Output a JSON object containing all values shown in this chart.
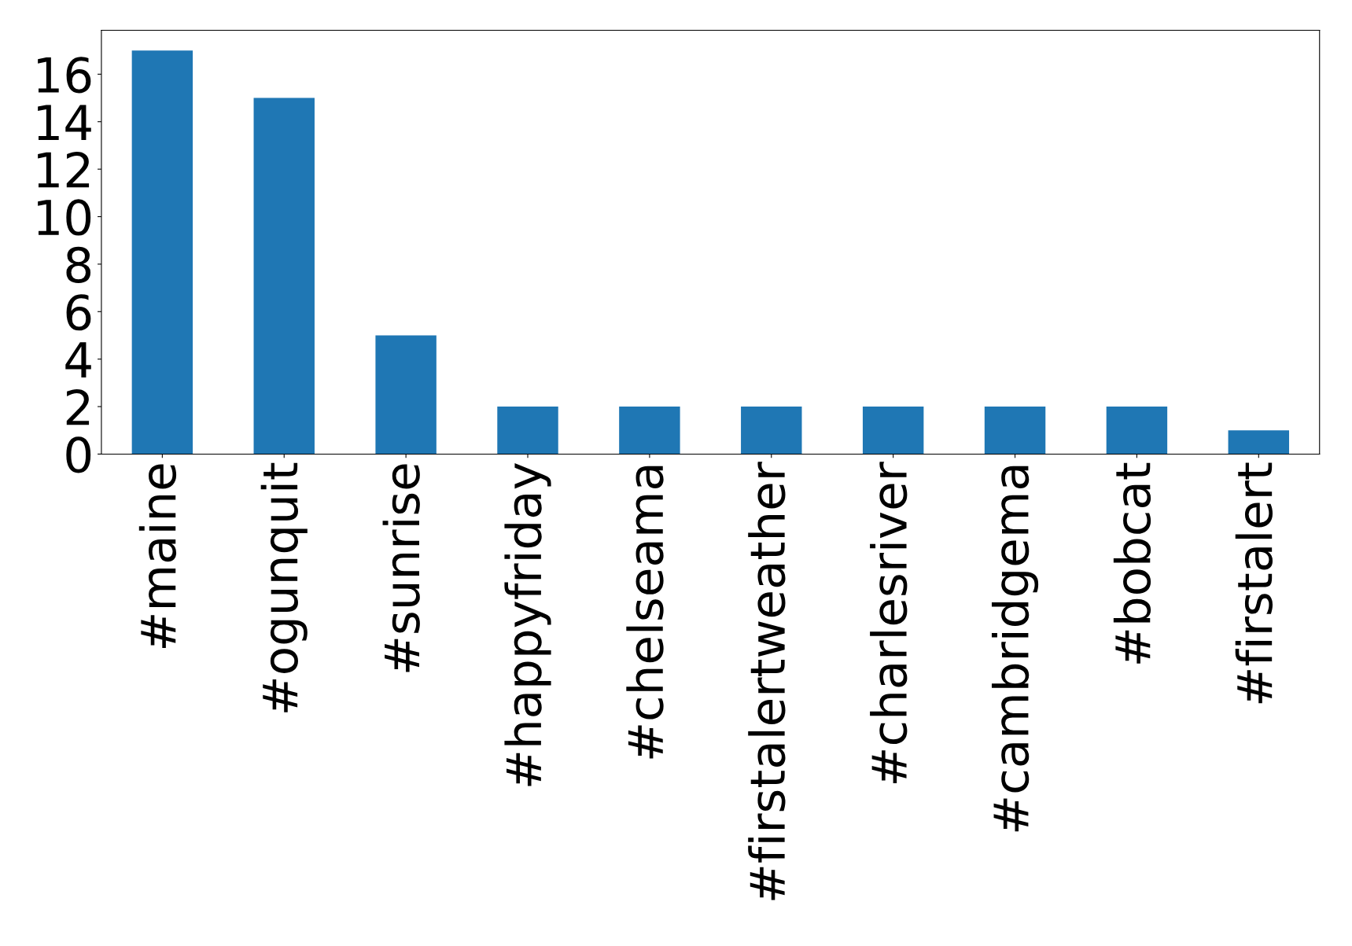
{
  "chart_data": {
    "type": "bar",
    "categories": [
      "#maine",
      "#ogunquit",
      "#sunrise",
      "#happyfriday",
      "#chelseama",
      "#firstalertweather",
      "#charlesriver",
      "#cambridgema",
      "#bobcat",
      "#firstalert"
    ],
    "values": [
      17,
      15,
      5,
      2,
      2,
      2,
      2,
      2,
      2,
      1
    ],
    "color": "#1f77b4",
    "ylim": [
      0,
      17.85
    ],
    "yticks": [
      0,
      2,
      4,
      6,
      8,
      10,
      12,
      14,
      16
    ],
    "grid": false
  }
}
